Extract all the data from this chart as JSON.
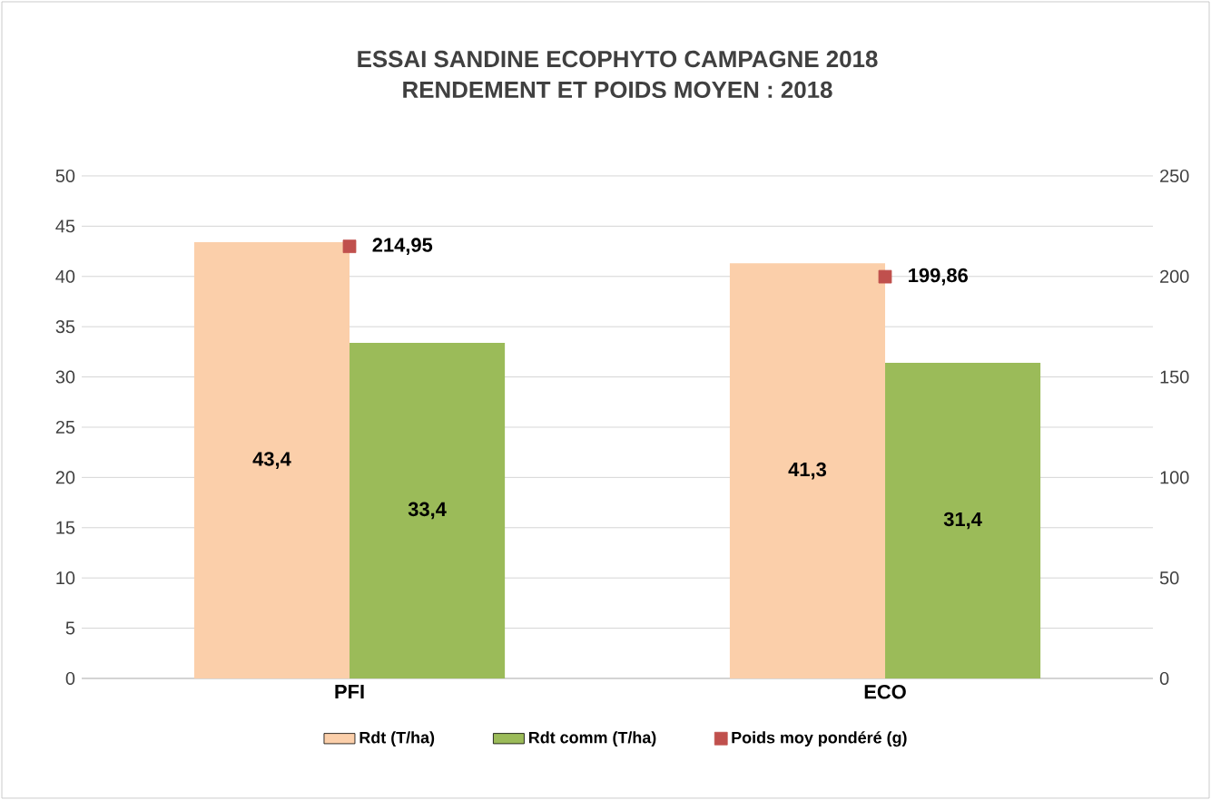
{
  "chart_data": {
    "type": "bar",
    "title": "ESSAI SANDINE ECOPHYTO CAMPAGNE 2018",
    "subtitle": "RENDEMENT ET POIDS MOYEN : 2018",
    "categories": [
      "PFI",
      "ECO"
    ],
    "series": [
      {
        "name": "Rdt (T/ha)",
        "color": "#fbcfaa",
        "values": [
          43.4,
          41.3
        ],
        "value_labels": [
          "43,4",
          "41,3"
        ]
      },
      {
        "name": "Rdt comm (T/ha)",
        "color": "#9bbb59",
        "values": [
          33.4,
          31.4
        ],
        "value_labels": [
          "33,4",
          "31,4"
        ]
      },
      {
        "name": "Poids moy pondéré (g)",
        "type": "scatter",
        "axis": "y2",
        "marker": "square",
        "color": "#c0504d",
        "values": [
          214.95,
          199.86
        ],
        "value_labels": [
          "214,95",
          "199,86"
        ]
      }
    ],
    "ylim": [
      0,
      50
    ],
    "yticks": [
      0,
      5,
      10,
      15,
      20,
      25,
      30,
      35,
      40,
      45,
      50
    ],
    "y2lim": [
      0,
      250
    ],
    "y2ticks": [
      0,
      50,
      100,
      150,
      200,
      250
    ],
    "grid": "y",
    "legend": "bottom"
  }
}
